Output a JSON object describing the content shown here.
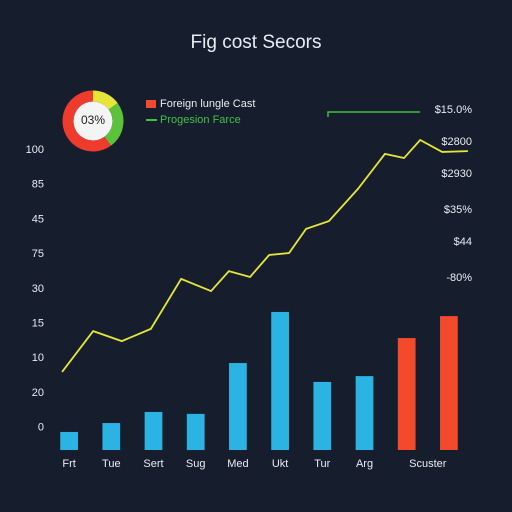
{
  "chart_data": {
    "type": "bar",
    "title": "Fig cost Secors",
    "categories": [
      "Frt",
      "Tue",
      "Sert",
      "Sug",
      "Med",
      "Ukt",
      "Tur",
      "Arg",
      "Scuster",
      null
    ],
    "ylim": [
      -8,
      100
    ],
    "yticks": [
      100,
      {
        "value": 87.5,
        "label": "85"
      },
      {
        "value": 75,
        "label": "45"
      },
      {
        "value": 62.5,
        "label": "75"
      },
      {
        "value": 50,
        "label": "30"
      },
      {
        "value": 37.5,
        "label": "15"
      },
      {
        "value": 25,
        "label": "10"
      },
      {
        "value": 12.5,
        "label": "20"
      },
      0
    ],
    "xlim": [
      0,
      100
    ],
    "series": [
      {
        "type": "bar",
        "color": "#2bb3e3",
        "values": [
          -1.5,
          1.7,
          5.7,
          5,
          23.3,
          41.7,
          16.5,
          18.6,
          null,
          null
        ]
      },
      {
        "type": "bar",
        "name": "Foreign lungle Cast",
        "color": "#f24a2a",
        "values": [
          null,
          null,
          null,
          null,
          null,
          null,
          null,
          null,
          32.3,
          40.2
        ]
      },
      {
        "type": "line",
        "name": "Progesion Farce",
        "color": "#e6e639",
        "legend_color": "#43c043",
        "x": [
          1.7,
          9.2,
          16.1,
          23.1,
          30.4,
          37.6,
          41.9,
          47,
          51.6,
          56.4,
          60.5,
          66,
          73,
          79.5,
          84.1,
          88,
          93.3,
          99.5
        ],
        "values": [
          20.1,
          34.8,
          31.2,
          35.6,
          53.6,
          49.2,
          56.4,
          54.3,
          62.2,
          62.9,
          71.6,
          74.4,
          86,
          98.6,
          97.1,
          103.6,
          99.3,
          99.6
        ]
      }
    ],
    "donut": {
      "label": "03%",
      "segments": [
        {
          "color": "#e6e639",
          "value": 15
        },
        {
          "color": "#5cc23a",
          "value": 25
        },
        {
          "color": "#ef3b2c",
          "value": 60
        }
      ]
    },
    "right_labels": [
      "$15.0%",
      "$2800",
      "$2930",
      "$35%",
      "$44",
      "-80%"
    ]
  }
}
